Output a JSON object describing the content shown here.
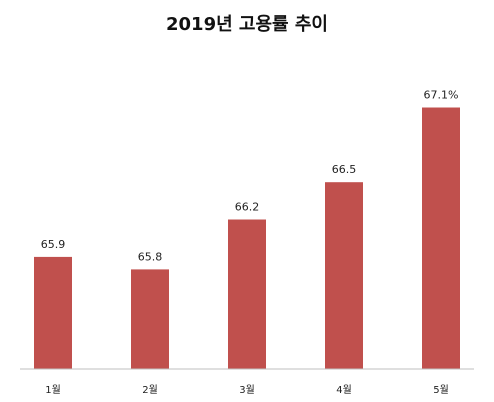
{
  "chart_data": {
    "type": "bar",
    "title": "2019년 고용률 추이",
    "categories": [
      "1월",
      "2월",
      "3월",
      "4월",
      "5월"
    ],
    "values": [
      65.9,
      65.8,
      66.2,
      66.5,
      67.1
    ],
    "value_labels": [
      "65.9",
      "65.8",
      "66.2",
      "66.5",
      "67.1%"
    ],
    "xlabel": "",
    "ylabel": "",
    "ylim": [
      65.0,
      67.2
    ],
    "grid": false,
    "legend": "none",
    "bar_color": "#c0504d"
  }
}
